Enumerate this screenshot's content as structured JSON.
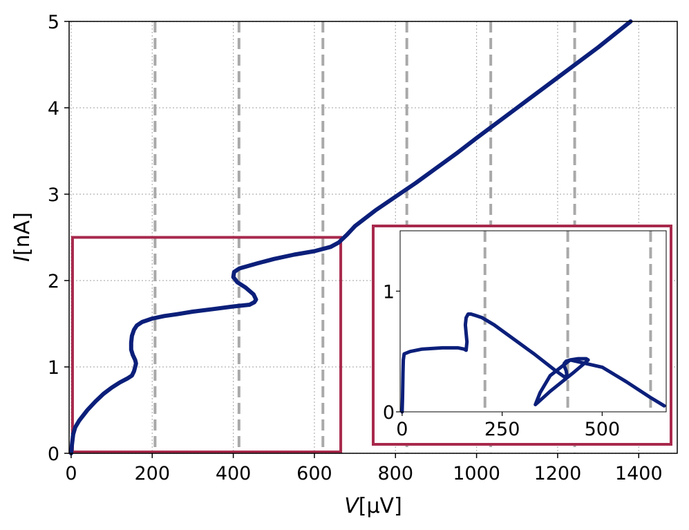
{
  "chart_data": [
    {
      "type": "line",
      "title": "",
      "xlabel_var": "V",
      "xlabel_unit": "[μV]",
      "ylabel_var": "I",
      "ylabel_unit": "[nA]",
      "xlim": [
        -5,
        1495
      ],
      "ylim": [
        0,
        5
      ],
      "xticks": [
        0,
        200,
        400,
        600,
        800,
        1000,
        1200,
        1400
      ],
      "yticks": [
        0,
        1,
        2,
        3,
        4,
        5
      ],
      "grid": true,
      "grid_style": "dotted",
      "vlines": [
        207,
        414,
        621,
        828,
        1035,
        1242
      ],
      "vline_style": "dashed",
      "vline_color": "#a9a9a9",
      "line_color": "#0b1f7a",
      "highlight_box": {
        "x": [
          0,
          665
        ],
        "y": [
          0,
          2.5
        ],
        "color": "#a8294c"
      },
      "series": [
        {
          "x": [
            0,
            2,
            5,
            10,
            20,
            40,
            60,
            80,
            100,
            120,
            140,
            150,
            155,
            158,
            160,
            158,
            152,
            148,
            148,
            150,
            155,
            162,
            175,
            200,
            230,
            260,
            300,
            350,
            400,
            440,
            452,
            456,
            450,
            430,
            410,
            400,
            402,
            415,
            430,
            460,
            500,
            550,
            600,
            640,
            660,
            680,
            700,
            750,
            800,
            850,
            900,
            950,
            1000,
            1100,
            1200,
            1300,
            1380
          ],
          "y": [
            0,
            0.1,
            0.22,
            0.3,
            0.38,
            0.5,
            0.6,
            0.69,
            0.76,
            0.82,
            0.87,
            0.9,
            0.95,
            1.0,
            1.04,
            1.08,
            1.14,
            1.2,
            1.28,
            1.36,
            1.43,
            1.48,
            1.52,
            1.56,
            1.59,
            1.61,
            1.64,
            1.67,
            1.7,
            1.72,
            1.75,
            1.78,
            1.84,
            1.92,
            1.98,
            2.04,
            2.1,
            2.14,
            2.16,
            2.2,
            2.25,
            2.3,
            2.34,
            2.39,
            2.44,
            2.53,
            2.63,
            2.81,
            2.97,
            3.13,
            3.3,
            3.47,
            3.65,
            4.0,
            4.35,
            4.7,
            5.0
          ]
        }
      ]
    },
    {
      "type": "line",
      "title": "",
      "xlim": [
        -5,
        660
      ],
      "ylim": [
        0,
        1.5
      ],
      "xticks": [
        0,
        250,
        500
      ],
      "yticks": [
        0,
        1
      ],
      "grid": false,
      "vlines": [
        207,
        414,
        621
      ],
      "vline_style": "dashed",
      "vline_color": "#a9a9a9",
      "line_color": "#0b1f7a",
      "frame_color": "#a8294c",
      "series": [
        {
          "x": [
            0,
            1,
            2,
            3,
            5,
            20,
            50,
            100,
            140,
            155,
            160,
            162,
            160,
            158,
            160,
            165,
            172,
            182,
            200,
            230,
            280,
            330,
            380,
            405,
            412,
            410,
            405,
            405,
            410,
            420,
            440,
            460,
            465,
            455,
            430,
            400,
            370,
            350,
            340,
            333,
            345,
            370,
            420,
            500,
            560,
            620,
            655
          ],
          "y": [
            0,
            0.12,
            0.32,
            0.43,
            0.48,
            0.5,
            0.52,
            0.53,
            0.53,
            0.52,
            0.51,
            0.58,
            0.65,
            0.72,
            0.78,
            0.81,
            0.81,
            0.8,
            0.78,
            0.72,
            0.6,
            0.48,
            0.35,
            0.29,
            0.3,
            0.34,
            0.38,
            0.4,
            0.42,
            0.43,
            0.44,
            0.44,
            0.43,
            0.4,
            0.33,
            0.25,
            0.17,
            0.11,
            0.08,
            0.06,
            0.16,
            0.3,
            0.43,
            0.37,
            0.25,
            0.12,
            0.05
          ]
        }
      ]
    }
  ]
}
